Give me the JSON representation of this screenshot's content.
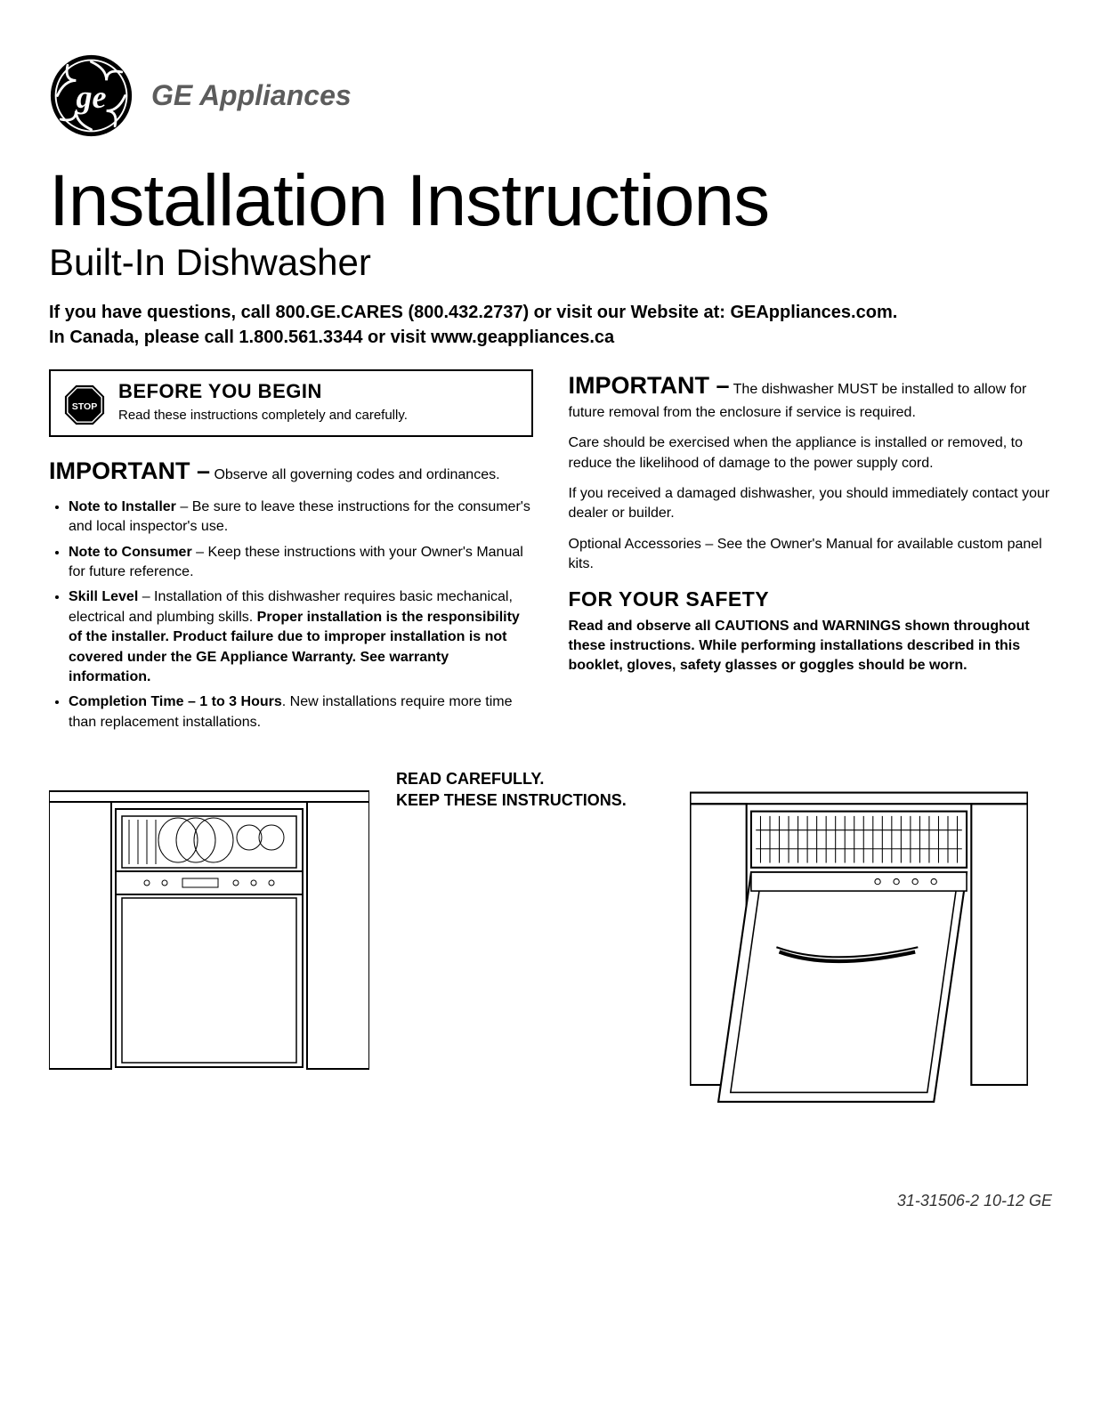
{
  "brand": "GE Appliances",
  "main_title": "Installation Instructions",
  "subtitle": "Built-In Dishwasher",
  "contact_line1": "If you have questions, call 800.GE.CARES (800.432.2737) or visit our Website at: GEAppliances.com.",
  "contact_line2": "In Canada, please call 1.800.561.3344 or visit www.geappliances.ca",
  "stop_label": "STOP",
  "before_heading": "BEFORE YOU BEGIN",
  "before_body": "Read these instructions completely and carefully.",
  "left_important_lead": "IMPORTANT –",
  "left_important_rest": " Observe all governing codes and ordinances.",
  "bullets": [
    {
      "lead": "Note to Installer",
      "rest": " – Be sure to leave these instructions for the consumer's and local inspector's use."
    },
    {
      "lead": "Note to Consumer",
      "rest": " – Keep these instructions with your Owner's Manual for future reference."
    },
    {
      "lead": "Skill Level",
      "rest": " – Installation of this dishwasher requires basic mechanical, electrical and plumbing skills. ",
      "bold_tail": "Proper installation is the responsibility of the installer. Product failure due to improper installation is not covered under the GE Appliance Warranty. See warranty information."
    },
    {
      "lead": "Completion Time – 1 to 3 Hours",
      "rest": ". New installations require more time than replacement installations."
    }
  ],
  "right_important_lead": "IMPORTANT –",
  "right_important_rest": " The dishwasher MUST be installed to allow for future removal from the enclosure if service is required.",
  "right_p2": "Care should be exercised when the appliance is installed or removed, to reduce the likelihood of damage to the power supply cord.",
  "right_p3": "If you received a damaged dishwasher, you should immediately contact your dealer or builder.",
  "right_p4": "Optional Accessories – See the Owner's Manual for available custom panel kits.",
  "safety_heading": "FOR YOUR SAFETY",
  "safety_body": "Read and observe all CAUTIONS and WARNINGS shown throughout these instructions. While performing installations described in this booklet, gloves, safety glasses or goggles should be worn.",
  "center_note_line1": "READ CAREFULLY.",
  "center_note_line2": "KEEP THESE INSTRUCTIONS.",
  "footer": "31-31506-2  10-12 GE",
  "colors": {
    "text": "#000000",
    "brand_gray": "#5c5c5c",
    "bg": "#ffffff"
  }
}
